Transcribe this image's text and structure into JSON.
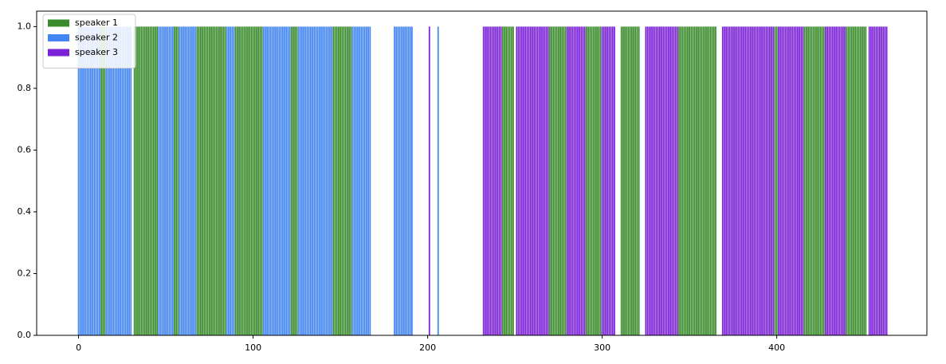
{
  "chart_data": {
    "type": "bar",
    "xlim": [
      -24,
      486
    ],
    "ylim": [
      0,
      1.05
    ],
    "xticks": [
      0,
      100,
      200,
      300,
      400
    ],
    "yticks": [
      {
        "value": 0,
        "label": "0.0"
      },
      0.2,
      0.4,
      0.6,
      0.8,
      {
        "value": 1,
        "label": "1.0"
      }
    ],
    "legend": "upper left",
    "series": [
      {
        "name": "speaker 1",
        "color": "#3a8b2c",
        "x": [
          13,
          14,
          15,
          32,
          33,
          34,
          35,
          36,
          37,
          38,
          39,
          40,
          41,
          42,
          43,
          44,
          45,
          55,
          56,
          57,
          68,
          69,
          70,
          71,
          72,
          73,
          74,
          75,
          76,
          77,
          78,
          79,
          80,
          81,
          82,
          83,
          84,
          90,
          91,
          92,
          93,
          94,
          95,
          96,
          97,
          98,
          99,
          100,
          101,
          102,
          103,
          104,
          105,
          122,
          123,
          124,
          125,
          146,
          147,
          148,
          149,
          150,
          151,
          152,
          153,
          154,
          155,
          156,
          243,
          244,
          245,
          246,
          247,
          248,
          249,
          270,
          271,
          272,
          273,
          274,
          275,
          276,
          277,
          278,
          279,
          291,
          292,
          293,
          294,
          295,
          296,
          297,
          298,
          299,
          311,
          312,
          313,
          314,
          315,
          316,
          317,
          318,
          319,
          320,
          321,
          344,
          345,
          346,
          347,
          348,
          349,
          350,
          351,
          352,
          353,
          354,
          355,
          356,
          357,
          358,
          359,
          360,
          361,
          362,
          363,
          364,
          365,
          399,
          400,
          416,
          417,
          418,
          419,
          420,
          421,
          422,
          423,
          424,
          425,
          426,
          427,
          440,
          441,
          442,
          443,
          444,
          445,
          446,
          447,
          448,
          449,
          450,
          451
        ],
        "values": [
          1,
          1,
          1,
          1,
          1,
          1,
          1,
          1,
          1,
          1,
          1,
          1,
          1,
          1,
          1,
          1,
          1,
          1,
          1,
          1,
          1,
          1,
          1,
          1,
          1,
          1,
          1,
          1,
          1,
          1,
          1,
          1,
          1,
          1,
          1,
          1,
          1,
          1,
          1,
          1,
          1,
          1,
          1,
          1,
          1,
          1,
          1,
          1,
          1,
          1,
          1,
          1,
          1,
          1,
          1,
          1,
          1,
          1,
          1,
          1,
          1,
          1,
          1,
          1,
          1,
          1,
          1,
          1,
          1,
          1,
          1,
          1,
          1,
          1,
          1,
          1,
          1,
          1,
          1,
          1,
          1,
          1,
          1,
          1,
          1,
          1,
          1,
          1,
          1,
          1,
          1,
          1,
          1,
          1,
          1,
          1,
          1,
          1,
          1,
          1,
          1,
          1,
          1,
          1,
          1,
          1,
          1,
          1,
          1,
          1,
          1,
          1,
          1,
          1,
          1,
          1,
          1,
          1,
          1,
          1,
          1,
          1,
          1,
          1,
          1,
          1,
          1,
          1,
          1,
          1,
          1,
          1,
          1,
          1,
          1,
          1,
          1,
          1,
          1,
          1,
          1,
          1,
          1,
          1,
          1,
          1,
          1,
          1,
          1,
          1,
          1,
          1,
          1
        ]
      },
      {
        "name": "speaker 2",
        "color": "#4285f4",
        "x": [
          0,
          1,
          2,
          3,
          4,
          5,
          6,
          7,
          8,
          9,
          10,
          11,
          12,
          16,
          17,
          18,
          19,
          20,
          21,
          22,
          23,
          24,
          25,
          26,
          27,
          28,
          29,
          30,
          46,
          47,
          48,
          49,
          50,
          51,
          52,
          53,
          54,
          58,
          59,
          60,
          61,
          62,
          63,
          64,
          65,
          66,
          67,
          85,
          86,
          87,
          88,
          89,
          106,
          107,
          108,
          109,
          110,
          111,
          112,
          113,
          114,
          115,
          116,
          117,
          118,
          119,
          120,
          121,
          126,
          127,
          128,
          129,
          130,
          131,
          132,
          133,
          134,
          135,
          136,
          137,
          138,
          139,
          140,
          141,
          142,
          143,
          144,
          145,
          157,
          158,
          159,
          160,
          161,
          162,
          163,
          164,
          165,
          166,
          167,
          181,
          182,
          183,
          184,
          185,
          186,
          187,
          188,
          189,
          190,
          191,
          206
        ],
        "values": [
          1,
          1,
          1,
          1,
          1,
          1,
          1,
          1,
          1,
          1,
          1,
          1,
          1,
          1,
          1,
          1,
          1,
          1,
          1,
          1,
          1,
          1,
          1,
          1,
          1,
          1,
          1,
          1,
          1,
          1,
          1,
          1,
          1,
          1,
          1,
          1,
          1,
          1,
          1,
          1,
          1,
          1,
          1,
          1,
          1,
          1,
          1,
          1,
          1,
          1,
          1,
          1,
          1,
          1,
          1,
          1,
          1,
          1,
          1,
          1,
          1,
          1,
          1,
          1,
          1,
          1,
          1,
          1,
          1,
          1,
          1,
          1,
          1,
          1,
          1,
          1,
          1,
          1,
          1,
          1,
          1,
          1,
          1,
          1,
          1,
          1,
          1,
          1,
          1,
          1,
          1,
          1,
          1,
          1,
          1,
          1,
          1,
          1,
          1,
          1,
          1,
          1,
          1,
          1,
          1,
          1,
          1,
          1,
          1,
          1,
          1
        ]
      },
      {
        "name": "speaker 3",
        "color": "#7b22d8",
        "x": [
          201,
          232,
          233,
          234,
          235,
          236,
          237,
          238,
          239,
          240,
          241,
          242,
          251,
          252,
          253,
          254,
          255,
          256,
          257,
          258,
          259,
          260,
          261,
          262,
          263,
          264,
          265,
          266,
          267,
          268,
          269,
          280,
          281,
          282,
          283,
          284,
          285,
          286,
          287,
          288,
          289,
          290,
          300,
          301,
          302,
          303,
          304,
          305,
          306,
          307,
          325,
          326,
          327,
          328,
          329,
          330,
          331,
          332,
          333,
          334,
          335,
          336,
          337,
          338,
          339,
          340,
          341,
          342,
          343,
          369,
          370,
          371,
          372,
          373,
          374,
          375,
          376,
          377,
          378,
          379,
          380,
          381,
          382,
          383,
          384,
          385,
          386,
          387,
          388,
          389,
          390,
          391,
          392,
          393,
          394,
          395,
          396,
          397,
          398,
          401,
          402,
          403,
          404,
          405,
          406,
          407,
          408,
          409,
          410,
          411,
          412,
          413,
          414,
          415,
          428,
          429,
          430,
          431,
          432,
          433,
          434,
          435,
          436,
          437,
          438,
          439,
          453,
          454,
          455,
          456,
          457,
          458,
          459,
          460,
          461,
          462,
          463
        ],
        "values": [
          1,
          1,
          1,
          1,
          1,
          1,
          1,
          1,
          1,
          1,
          1,
          1,
          1,
          1,
          1,
          1,
          1,
          1,
          1,
          1,
          1,
          1,
          1,
          1,
          1,
          1,
          1,
          1,
          1,
          1,
          1,
          1,
          1,
          1,
          1,
          1,
          1,
          1,
          1,
          1,
          1,
          1,
          1,
          1,
          1,
          1,
          1,
          1,
          1,
          1,
          1,
          1,
          1,
          1,
          1,
          1,
          1,
          1,
          1,
          1,
          1,
          1,
          1,
          1,
          1,
          1,
          1,
          1,
          1,
          1,
          1,
          1,
          1,
          1,
          1,
          1,
          1,
          1,
          1,
          1,
          1,
          1,
          1,
          1,
          1,
          1,
          1,
          1,
          1,
          1,
          1,
          1,
          1,
          1,
          1,
          1,
          1,
          1,
          1,
          1,
          1,
          1,
          1,
          1,
          1,
          1,
          1,
          1,
          1,
          1,
          1,
          1,
          1,
          1,
          1,
          1,
          1,
          1,
          1,
          1,
          1,
          1,
          1,
          1,
          1,
          1,
          1,
          1,
          1,
          1,
          1,
          1,
          1,
          1,
          1,
          1,
          1
        ]
      }
    ]
  }
}
